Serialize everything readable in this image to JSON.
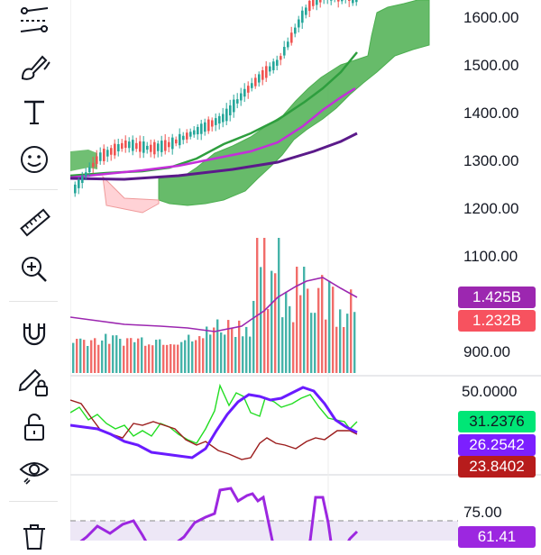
{
  "toolbar": {
    "items": [
      {
        "name": "trend-lines-icon"
      },
      {
        "name": "brush-icon"
      },
      {
        "name": "text-tool-icon"
      },
      {
        "name": "emoji-icon"
      },
      {
        "name": "ruler-icon"
      },
      {
        "name": "zoom-in-icon"
      },
      {
        "name": "magnet-icon"
      },
      {
        "name": "lock-drawings-icon"
      },
      {
        "name": "unlock-icon"
      },
      {
        "name": "eye-icon"
      },
      {
        "name": "trash-icon"
      }
    ]
  },
  "price_axis": {
    "labels": [
      "1600.00",
      "1500.00",
      "1400.00",
      "1300.00",
      "1200.00",
      "1100.00",
      "900.00"
    ]
  },
  "volume": {
    "avg_label": "1.425B",
    "last_label": "1.232B",
    "avg_color": "#9c27b0",
    "last_color": "#f7525f"
  },
  "indicator1": {
    "level_label": "50.0000",
    "values": [
      "31.2376",
      "26.2542",
      "23.8402"
    ],
    "colors": [
      "#00e676",
      "#7c1fff",
      "#b71c1c"
    ]
  },
  "indicator2": {
    "level_label": "75.00",
    "value": "61.41",
    "color": "#9c27e0"
  },
  "colors": {
    "up": "#26a69a",
    "down": "#ef5350",
    "cloud": "#4caf50",
    "ma_green": "#2e9e3e",
    "ma_magenta": "#c32fd9",
    "ma_purple": "#5b1a8a"
  }
}
